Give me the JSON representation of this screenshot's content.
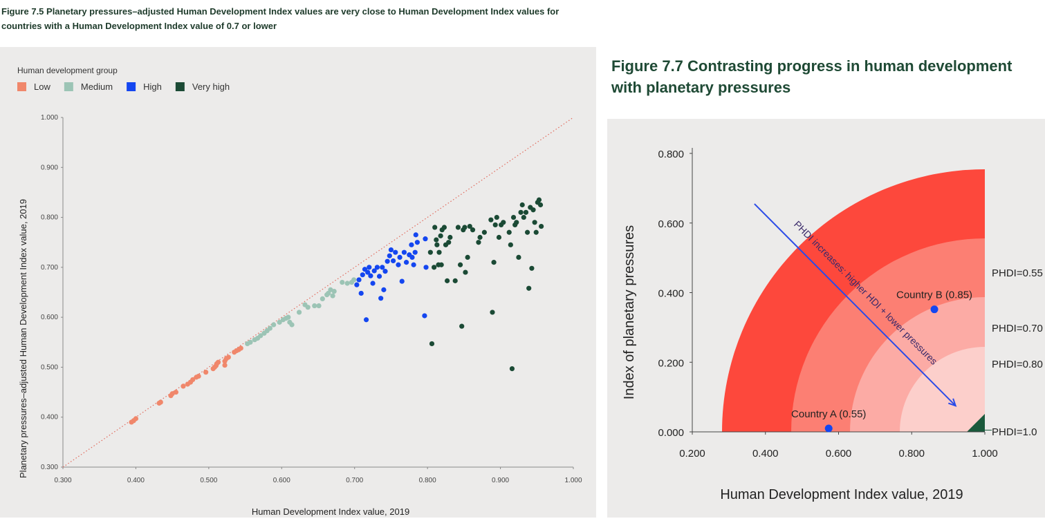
{
  "figure_7_5": {
    "title": "Figure 7.5 Planetary pressures–adjusted Human Development Index values are very close to Human Development Index values for countries with a Human Development Index value of 0.7 or lower",
    "chart_data": {
      "type": "scatter",
      "title": "",
      "legend_title": "Human development group",
      "legend_position": "top-left",
      "xlabel": "Human Development Index value, 2019",
      "ylabel": "Planetary pressures–adjusted Human Development Index value, 2019",
      "xlim": [
        0.3,
        1.0
      ],
      "ylim": [
        0.3,
        1.0
      ],
      "x_ticks": [
        "0.300",
        "0.400",
        "0.500",
        "0.600",
        "0.700",
        "0.800",
        "0.900",
        "1.000"
      ],
      "y_ticks": [
        "0.300",
        "0.400",
        "0.500",
        "0.600",
        "0.700",
        "0.800",
        "0.900",
        "1.000"
      ],
      "reference_line": "y = x (dotted)",
      "grid": false,
      "series": [
        {
          "name": "Low",
          "color": "#f0876b",
          "points": [
            [
              0.394,
              0.39
            ],
            [
              0.397,
              0.393
            ],
            [
              0.4,
              0.397
            ],
            [
              0.432,
              0.428
            ],
            [
              0.434,
              0.43
            ],
            [
              0.448,
              0.443
            ],
            [
              0.45,
              0.447
            ],
            [
              0.455,
              0.45
            ],
            [
              0.465,
              0.462
            ],
            [
              0.471,
              0.466
            ],
            [
              0.475,
              0.47
            ],
            [
              0.478,
              0.475
            ],
            [
              0.483,
              0.48
            ],
            [
              0.486,
              0.482
            ],
            [
              0.496,
              0.49
            ],
            [
              0.506,
              0.497
            ],
            [
              0.508,
              0.5
            ],
            [
              0.51,
              0.503
            ],
            [
              0.511,
              0.507
            ],
            [
              0.513,
              0.51
            ],
            [
              0.522,
              0.512
            ],
            [
              0.524,
              0.517
            ],
            [
              0.527,
              0.52
            ],
            [
              0.522,
              0.504
            ],
            [
              0.535,
              0.53
            ],
            [
              0.538,
              0.533
            ],
            [
              0.541,
              0.535
            ],
            [
              0.544,
              0.538
            ]
          ]
        },
        {
          "name": "Medium",
          "color": "#9cc4b5",
          "points": [
            [
              0.553,
              0.547
            ],
            [
              0.557,
              0.55
            ],
            [
              0.563,
              0.555
            ],
            [
              0.567,
              0.558
            ],
            [
              0.571,
              0.563
            ],
            [
              0.576,
              0.568
            ],
            [
              0.58,
              0.573
            ],
            [
              0.584,
              0.578
            ],
            [
              0.589,
              0.585
            ],
            [
              0.597,
              0.59
            ],
            [
              0.602,
              0.595
            ],
            [
              0.606,
              0.598
            ],
            [
              0.609,
              0.6
            ],
            [
              0.611,
              0.59
            ],
            [
              0.614,
              0.585
            ],
            [
              0.624,
              0.61
            ],
            [
              0.632,
              0.625
            ],
            [
              0.636,
              0.62
            ],
            [
              0.645,
              0.623
            ],
            [
              0.651,
              0.623
            ],
            [
              0.656,
              0.637
            ],
            [
              0.662,
              0.645
            ],
            [
              0.664,
              0.648
            ],
            [
              0.667,
              0.655
            ],
            [
              0.67,
              0.643
            ],
            [
              0.672,
              0.652
            ],
            [
              0.683,
              0.67
            ],
            [
              0.69,
              0.668
            ],
            [
              0.696,
              0.67
            ],
            [
              0.699,
              0.675
            ]
          ]
        },
        {
          "name": "High",
          "color": "#1446f0",
          "points": [
            [
              0.703,
              0.665
            ],
            [
              0.706,
              0.675
            ],
            [
              0.709,
              0.648
            ],
            [
              0.711,
              0.685
            ],
            [
              0.714,
              0.696
            ],
            [
              0.716,
              0.595
            ],
            [
              0.718,
              0.69
            ],
            [
              0.72,
              0.7
            ],
            [
              0.722,
              0.683
            ],
            [
              0.725,
              0.668
            ],
            [
              0.727,
              0.693
            ],
            [
              0.731,
              0.7
            ],
            [
              0.734,
              0.682
            ],
            [
              0.736,
              0.638
            ],
            [
              0.738,
              0.7
            ],
            [
              0.74,
              0.655
            ],
            [
              0.742,
              0.692
            ],
            [
              0.745,
              0.712
            ],
            [
              0.748,
              0.723
            ],
            [
              0.75,
              0.735
            ],
            [
              0.753,
              0.713
            ],
            [
              0.756,
              0.73
            ],
            [
              0.76,
              0.705
            ],
            [
              0.762,
              0.72
            ],
            [
              0.765,
              0.672
            ],
            [
              0.768,
              0.73
            ],
            [
              0.771,
              0.71
            ],
            [
              0.775,
              0.725
            ],
            [
              0.778,
              0.745
            ],
            [
              0.779,
              0.72
            ],
            [
              0.781,
              0.705
            ],
            [
              0.783,
              0.73
            ],
            [
              0.784,
              0.765
            ],
            [
              0.786,
              0.75
            ],
            [
              0.796,
              0.603
            ],
            [
              0.797,
              0.757
            ],
            [
              0.798,
              0.7
            ]
          ]
        },
        {
          "name": "Very high",
          "color": "#1b4a35",
          "points": [
            [
              0.804,
              0.73
            ],
            [
              0.806,
              0.547
            ],
            [
              0.809,
              0.7
            ],
            [
              0.81,
              0.78
            ],
            [
              0.812,
              0.755
            ],
            [
              0.813,
              0.745
            ],
            [
              0.815,
              0.705
            ],
            [
              0.816,
              0.73
            ],
            [
              0.818,
              0.763
            ],
            [
              0.819,
              0.705
            ],
            [
              0.82,
              0.775
            ],
            [
              0.823,
              0.78
            ],
            [
              0.825,
              0.745
            ],
            [
              0.827,
              0.673
            ],
            [
              0.829,
              0.75
            ],
            [
              0.831,
              0.76
            ],
            [
              0.838,
              0.673
            ],
            [
              0.842,
              0.78
            ],
            [
              0.845,
              0.705
            ],
            [
              0.847,
              0.582
            ],
            [
              0.849,
              0.775
            ],
            [
              0.851,
              0.78
            ],
            [
              0.852,
              0.69
            ],
            [
              0.855,
              0.72
            ],
            [
              0.858,
              0.782
            ],
            [
              0.862,
              0.775
            ],
            [
              0.87,
              0.75
            ],
            [
              0.872,
              0.76
            ],
            [
              0.878,
              0.77
            ],
            [
              0.887,
              0.795
            ],
            [
              0.889,
              0.61
            ],
            [
              0.891,
              0.71
            ],
            [
              0.893,
              0.785
            ],
            [
              0.895,
              0.8
            ],
            [
              0.898,
              0.76
            ],
            [
              0.901,
              0.785
            ],
            [
              0.904,
              0.79
            ],
            [
              0.912,
              0.77
            ],
            [
              0.914,
              0.745
            ],
            [
              0.916,
              0.497
            ],
            [
              0.918,
              0.8
            ],
            [
              0.92,
              0.785
            ],
            [
              0.922,
              0.79
            ],
            [
              0.925,
              0.72
            ],
            [
              0.928,
              0.81
            ],
            [
              0.93,
              0.825
            ],
            [
              0.932,
              0.8
            ],
            [
              0.935,
              0.81
            ],
            [
              0.937,
              0.77
            ],
            [
              0.939,
              0.658
            ],
            [
              0.941,
              0.82
            ],
            [
              0.943,
              0.698
            ],
            [
              0.945,
              0.815
            ],
            [
              0.947,
              0.79
            ],
            [
              0.949,
              0.77
            ],
            [
              0.951,
              0.83
            ],
            [
              0.953,
              0.835
            ],
            [
              0.955,
              0.825
            ],
            [
              0.956,
              0.782
            ]
          ]
        }
      ]
    }
  },
  "figure_7_7": {
    "title": "Figure 7.7 Contrasting progress in human development with planetary pressures",
    "chart_data": {
      "type": "diagram",
      "xlabel": "Human Development Index value, 2019",
      "ylabel": "Index of planetary pressures",
      "xlim": [
        0.2,
        1.0
      ],
      "ylim": [
        0.0,
        0.8
      ],
      "x_ticks": [
        "0.200",
        "0.400",
        "0.600",
        "0.800",
        "1.000"
      ],
      "y_ticks": [
        "0.000",
        "0.200",
        "0.400",
        "0.600",
        "0.800"
      ],
      "bands": [
        {
          "label": "PHDI=0.55",
          "color": "#fd483c"
        },
        {
          "label": "PHDI=0.70",
          "color": "#fc7f73"
        },
        {
          "label": "PHDI=0.80",
          "color": "#fcaba5"
        },
        {
          "label": "PHDI=1.0",
          "color": "#fccfcb",
          "corner_color": "#1a5a3c"
        }
      ],
      "points": [
        {
          "label": "Country A (0.55)",
          "x": 0.573,
          "y": 0.01,
          "color": "#1446f0"
        },
        {
          "label": "Country B (0.85)",
          "x": 0.862,
          "y": 0.352,
          "color": "#1446f0"
        }
      ],
      "arrow": {
        "label": "PHDI increases: higher HDI + lower pressures",
        "from": [
          0.37,
          0.655
        ],
        "to": [
          0.92,
          0.075
        ],
        "color": "#2a4be8"
      }
    }
  }
}
